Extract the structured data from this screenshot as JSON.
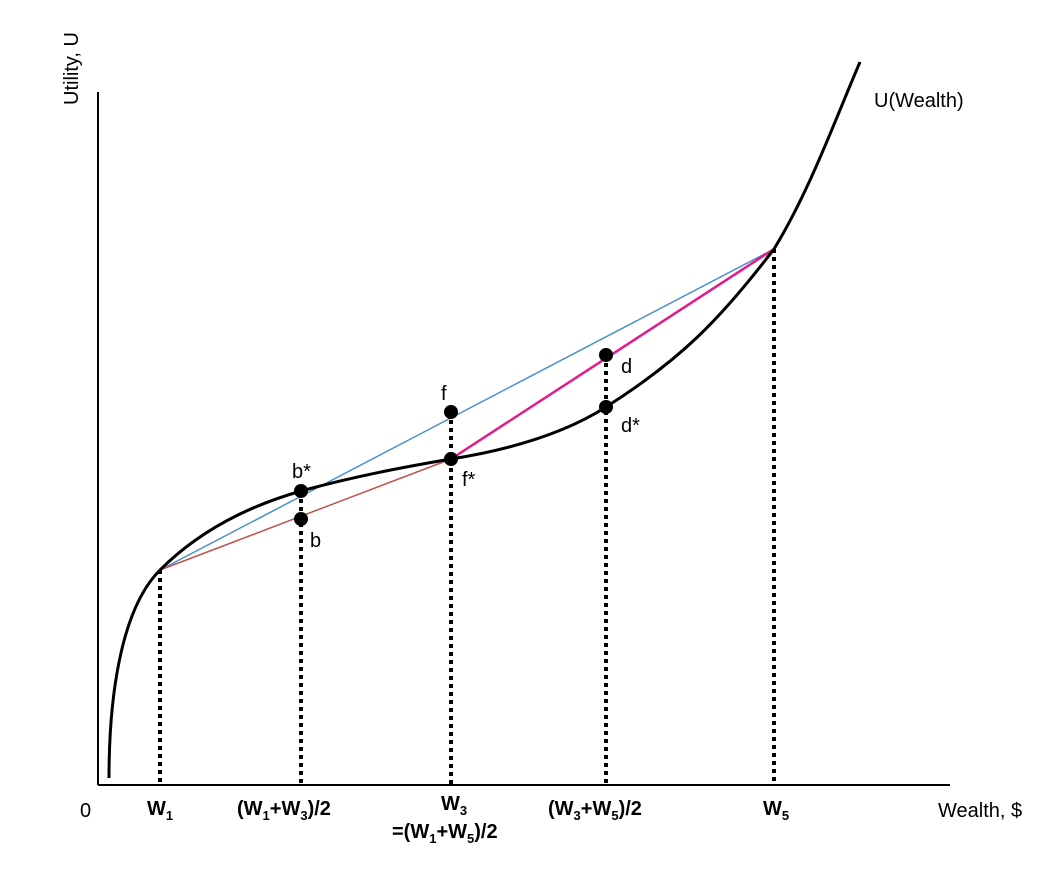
{
  "axes": {
    "y_label": "Utility, U",
    "x_label": "Wealth, $",
    "origin_label": "0"
  },
  "curve": {
    "label": "U(Wealth)"
  },
  "ticks": {
    "w1": {
      "base": "W",
      "sub": "1"
    },
    "w1w3": {
      "open": "(W",
      "sub1": "1",
      "mid": "+W",
      "sub2": "3",
      "close": ")/2"
    },
    "w3": {
      "base": "W",
      "sub": "3"
    },
    "w3_eq": {
      "open": "=(W",
      "sub1": "1",
      "mid": "+W",
      "sub2": "5",
      "close": ")/2"
    },
    "w3w5": {
      "open": "(W",
      "sub1": "3",
      "mid": "+W",
      "sub2": "5",
      "close": ")/2"
    },
    "w5": {
      "base": "W",
      "sub": "5"
    }
  },
  "points": {
    "b_star": "b*",
    "b": "b",
    "f": "f",
    "f_star": "f*",
    "d": "d",
    "d_star": "d*"
  },
  "colors": {
    "curve": "#000000",
    "blue_chord": "#4a90c8",
    "red_chord": "#c0504d",
    "magenta_chord": "#e6198c",
    "axis": "#000000"
  }
}
